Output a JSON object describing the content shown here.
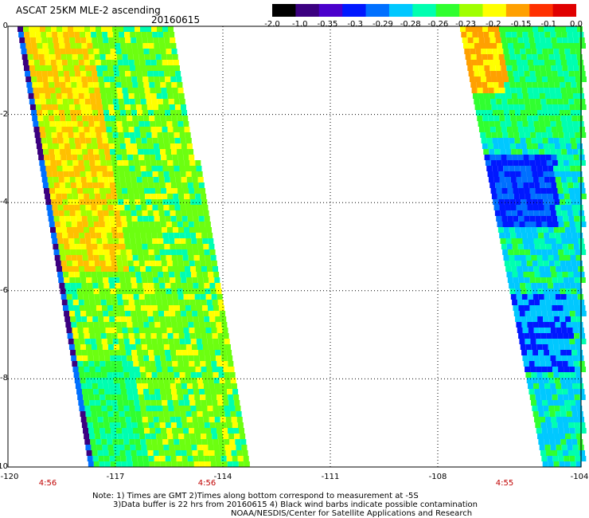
{
  "header": {
    "title": "ASCAT 25KM MLE-2 ascending",
    "date": "20160615"
  },
  "colorbar": {
    "ticks": [
      "-2.0",
      "-1.0",
      "-0.35",
      "-0.3",
      "-0.29",
      "-0.28",
      "-0.26",
      "-0.23",
      "-0.2",
      "-0.15",
      "-0.1",
      "0.0"
    ],
    "colors": [
      "#000000",
      "#3b0080",
      "#4a00cc",
      "#0018ff",
      "#0070ff",
      "#00c8ff",
      "#00ffb0",
      "#30ff30",
      "#a0ff00",
      "#ffff00",
      "#ffa000",
      "#ff3000",
      "#e00000"
    ]
  },
  "map": {
    "lon_range": [
      -120,
      -104
    ],
    "lat_range": [
      -10,
      0
    ],
    "x_ticks": [
      "-120",
      "-117",
      "-114",
      "-111",
      "-108",
      "-104"
    ],
    "y_ticks": [
      "0",
      "-2",
      "-4",
      "-6",
      "-8",
      "-10"
    ],
    "time_labels": [
      "4:56",
      "4:56",
      "4:55"
    ]
  },
  "notes": [
    "Note: 1) Times are GMT 2)Times along bottom correspond to measurement at -5S",
    "3)Data buffer is 22 hrs from 20160615 4) Black wind barbs indicate possible contamination",
    "NOAA/NESDIS/Center for Satellite Applications and Research"
  ]
}
